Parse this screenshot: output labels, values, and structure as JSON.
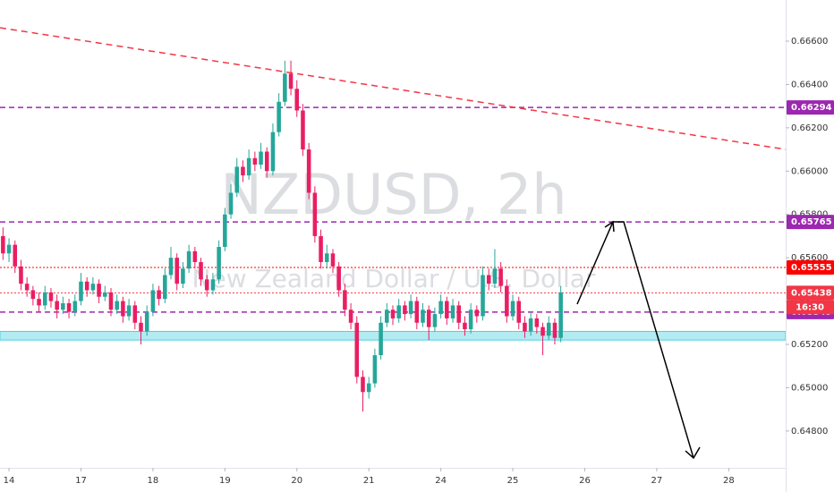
{
  "chart_data": {
    "type": "candlestick",
    "title": "NZDUSD, 2h",
    "subtitle": "New Zealand Dollar / U.S. Dollar",
    "up_color": "#26a69a",
    "down_color": "#e91e63",
    "xlim": [
      -0.5,
      130.5
    ],
    "xticks": [
      {
        "value": 1,
        "label": "14"
      },
      {
        "value": 13,
        "label": "17"
      },
      {
        "value": 25,
        "label": "18"
      },
      {
        "value": 37,
        "label": "19"
      },
      {
        "value": 49,
        "label": "20"
      },
      {
        "value": 61,
        "label": "21"
      },
      {
        "value": 73,
        "label": "24"
      },
      {
        "value": 85,
        "label": "25"
      },
      {
        "value": 97,
        "label": "26"
      },
      {
        "value": 109,
        "label": "27"
      },
      {
        "value": 121,
        "label": "28"
      }
    ],
    "ylim": [
      0.6463,
      0.6679
    ],
    "yticks": [
      {
        "value": 0.666,
        "label": "0.66600"
      },
      {
        "value": 0.664,
        "label": "0.66400"
      },
      {
        "value": 0.662,
        "label": "0.66200"
      },
      {
        "value": 0.66,
        "label": "0.66000"
      },
      {
        "value": 0.658,
        "label": "0.65800"
      },
      {
        "value": 0.656,
        "label": "0.65600"
      },
      {
        "value": 0.654,
        "label": "0.65400"
      },
      {
        "value": 0.652,
        "label": "0.65200"
      },
      {
        "value": 0.65,
        "label": "0.65000"
      },
      {
        "value": 0.648,
        "label": "0.64800"
      }
    ],
    "zone": [
      0.6522,
      0.6526
    ],
    "levels": [
      {
        "value": 0.66294,
        "color": "#9c27b0",
        "style": "dashed"
      },
      {
        "value": 0.65765,
        "color": "#9c27b0",
        "style": "dashed"
      },
      {
        "value": 0.65555,
        "color": "#ff0000",
        "style": "dotted"
      },
      {
        "value": 0.65438,
        "color": "#f23645",
        "style": "dotted"
      },
      {
        "value": 0.65349,
        "color": "#9c27b0",
        "style": "dashed"
      }
    ],
    "countdown": "16:30",
    "x": [
      0,
      1,
      2,
      3,
      4,
      5,
      6,
      7,
      8,
      9,
      10,
      11,
      12,
      13,
      14,
      15,
      16,
      17,
      18,
      19,
      20,
      21,
      22,
      23,
      24,
      25,
      26,
      27,
      28,
      29,
      30,
      31,
      32,
      33,
      34,
      35,
      36,
      37,
      38,
      39,
      40,
      41,
      42,
      43,
      44,
      45,
      46,
      47,
      48,
      49,
      50,
      51,
      52,
      53,
      54,
      55,
      56,
      57,
      58,
      59,
      60,
      61,
      62,
      63,
      64,
      65,
      66,
      67,
      68,
      69,
      70,
      71,
      72,
      73,
      74,
      75,
      76,
      77,
      78,
      79,
      80,
      81,
      82,
      83,
      84,
      85,
      86,
      87,
      88,
      89,
      90,
      91,
      92,
      93
    ],
    "ohlc": [
      [
        0.657,
        0.6574,
        0.6559,
        0.6562
      ],
      [
        0.6562,
        0.6569,
        0.6558,
        0.6566
      ],
      [
        0.6566,
        0.6568,
        0.6553,
        0.6556
      ],
      [
        0.6556,
        0.6559,
        0.6545,
        0.6548
      ],
      [
        0.6548,
        0.6551,
        0.6542,
        0.6545
      ],
      [
        0.6545,
        0.6547,
        0.6538,
        0.6541
      ],
      [
        0.6541,
        0.6544,
        0.6535,
        0.6538
      ],
      [
        0.6538,
        0.6547,
        0.6536,
        0.6544
      ],
      [
        0.6544,
        0.6546,
        0.6537,
        0.654
      ],
      [
        0.654,
        0.6543,
        0.6532,
        0.6536
      ],
      [
        0.6536,
        0.6542,
        0.6534,
        0.6539
      ],
      [
        0.6539,
        0.6541,
        0.6532,
        0.6535
      ],
      [
        0.6535,
        0.6543,
        0.6533,
        0.654
      ],
      [
        0.654,
        0.6553,
        0.6538,
        0.6549
      ],
      [
        0.6549,
        0.6551,
        0.6542,
        0.6545
      ],
      [
        0.6545,
        0.6551,
        0.6543,
        0.6548
      ],
      [
        0.6548,
        0.655,
        0.6539,
        0.6542
      ],
      [
        0.6542,
        0.6547,
        0.654,
        0.6544
      ],
      [
        0.6544,
        0.6546,
        0.6533,
        0.6536
      ],
      [
        0.6536,
        0.6543,
        0.6534,
        0.654
      ],
      [
        0.654,
        0.6542,
        0.653,
        0.6533
      ],
      [
        0.6533,
        0.6541,
        0.6531,
        0.6538
      ],
      [
        0.6538,
        0.654,
        0.6527,
        0.653
      ],
      [
        0.653,
        0.6533,
        0.652,
        0.6526
      ],
      [
        0.6526,
        0.6538,
        0.6524,
        0.6535
      ],
      [
        0.6535,
        0.6548,
        0.6533,
        0.6545
      ],
      [
        0.6545,
        0.6547,
        0.6538,
        0.6541
      ],
      [
        0.6541,
        0.6555,
        0.6539,
        0.6552
      ],
      [
        0.6552,
        0.6565,
        0.655,
        0.656
      ],
      [
        0.656,
        0.6562,
        0.6545,
        0.6548
      ],
      [
        0.6548,
        0.6558,
        0.6546,
        0.6555
      ],
      [
        0.6555,
        0.6566,
        0.6553,
        0.6563
      ],
      [
        0.6563,
        0.6565,
        0.6555,
        0.6558
      ],
      [
        0.6558,
        0.656,
        0.6547,
        0.655
      ],
      [
        0.655,
        0.6552,
        0.6542,
        0.6545
      ],
      [
        0.6545,
        0.6553,
        0.6543,
        0.655
      ],
      [
        0.655,
        0.6568,
        0.6548,
        0.6565
      ],
      [
        0.6565,
        0.6583,
        0.6563,
        0.658
      ],
      [
        0.658,
        0.6594,
        0.6578,
        0.659
      ],
      [
        0.659,
        0.6606,
        0.6588,
        0.6602
      ],
      [
        0.6602,
        0.6605,
        0.6595,
        0.6598
      ],
      [
        0.6598,
        0.661,
        0.6596,
        0.6606
      ],
      [
        0.6606,
        0.6609,
        0.66,
        0.6603
      ],
      [
        0.6603,
        0.6613,
        0.6601,
        0.6609
      ],
      [
        0.6609,
        0.6611,
        0.6597,
        0.66
      ],
      [
        0.66,
        0.6622,
        0.6598,
        0.6618
      ],
      [
        0.6618,
        0.6636,
        0.6616,
        0.6632
      ],
      [
        0.6632,
        0.6651,
        0.663,
        0.6645
      ],
      [
        0.6645,
        0.6651,
        0.6635,
        0.6638
      ],
      [
        0.6638,
        0.6642,
        0.6625,
        0.6628
      ],
      [
        0.6628,
        0.6631,
        0.6607,
        0.661
      ],
      [
        0.661,
        0.6613,
        0.6587,
        0.659
      ],
      [
        0.659,
        0.6593,
        0.6567,
        0.657
      ],
      [
        0.657,
        0.6573,
        0.6555,
        0.6558
      ],
      [
        0.6558,
        0.6566,
        0.6555,
        0.6562
      ],
      [
        0.6562,
        0.6564,
        0.6553,
        0.6556
      ],
      [
        0.6556,
        0.6558,
        0.6542,
        0.6545
      ],
      [
        0.6545,
        0.6548,
        0.6533,
        0.6536
      ],
      [
        0.6536,
        0.6539,
        0.6527,
        0.653
      ],
      [
        0.653,
        0.6533,
        0.6502,
        0.6505
      ],
      [
        0.6505,
        0.6508,
        0.6489,
        0.6498
      ],
      [
        0.6498,
        0.6505,
        0.6495,
        0.6502
      ],
      [
        0.6502,
        0.6518,
        0.65,
        0.6515
      ],
      [
        0.6515,
        0.6533,
        0.6513,
        0.653
      ],
      [
        0.653,
        0.6539,
        0.6528,
        0.6536
      ],
      [
        0.6536,
        0.6538,
        0.6529,
        0.6532
      ],
      [
        0.6532,
        0.6541,
        0.653,
        0.6538
      ],
      [
        0.6538,
        0.654,
        0.6531,
        0.6534
      ],
      [
        0.6534,
        0.6543,
        0.6532,
        0.654
      ],
      [
        0.654,
        0.6542,
        0.6527,
        0.653
      ],
      [
        0.653,
        0.6539,
        0.6528,
        0.6536
      ],
      [
        0.6536,
        0.6538,
        0.6522,
        0.6528
      ],
      [
        0.6528,
        0.6537,
        0.6526,
        0.6534
      ],
      [
        0.6534,
        0.6543,
        0.6532,
        0.654
      ],
      [
        0.654,
        0.6542,
        0.6529,
        0.6532
      ],
      [
        0.6532,
        0.6541,
        0.653,
        0.6538
      ],
      [
        0.6538,
        0.654,
        0.6527,
        0.653
      ],
      [
        0.653,
        0.6533,
        0.6524,
        0.6527
      ],
      [
        0.6527,
        0.6539,
        0.6525,
        0.6536
      ],
      [
        0.6536,
        0.6538,
        0.653,
        0.6533
      ],
      [
        0.6533,
        0.6556,
        0.6531,
        0.6552
      ],
      [
        0.6552,
        0.6555,
        0.6545,
        0.6548
      ],
      [
        0.6548,
        0.6564,
        0.6546,
        0.6555
      ],
      [
        0.6555,
        0.6558,
        0.6544,
        0.6547
      ],
      [
        0.6547,
        0.655,
        0.653,
        0.6533
      ],
      [
        0.6533,
        0.6543,
        0.6531,
        0.654
      ],
      [
        0.654,
        0.6542,
        0.6527,
        0.653
      ],
      [
        0.653,
        0.6533,
        0.6523,
        0.6526
      ],
      [
        0.6526,
        0.6535,
        0.6524,
        0.6532
      ],
      [
        0.6532,
        0.6534,
        0.6525,
        0.6528
      ],
      [
        0.6528,
        0.653,
        0.6515,
        0.6524
      ],
      [
        0.6524,
        0.6533,
        0.6522,
        0.653
      ],
      [
        0.653,
        0.6532,
        0.652,
        0.6523
      ],
      [
        0.6523,
        0.6547,
        0.6521,
        0.6544
      ]
    ]
  }
}
